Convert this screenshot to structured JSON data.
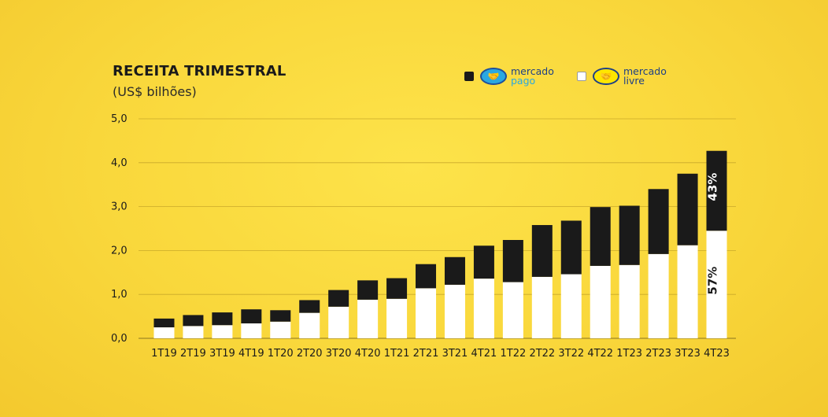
{
  "title": "RECEITA TRIMESTRAL",
  "subtitle": "(US$ bilhões)",
  "legend": [
    {
      "name": "Mercado Pago",
      "line1": "mercado",
      "line2": "pago",
      "swatch": "#1a1a1a",
      "logo_color": "#2aa8e0",
      "icon": "handshake-icon"
    },
    {
      "name": "Mercado Livre",
      "line1": "mercado",
      "line2": "livre",
      "swatch": "#ffffff",
      "logo_color": "#ffe600",
      "icon": "handshake-icon"
    }
  ],
  "colors": {
    "background": "#f9d63a",
    "pago": "#1a1a1a",
    "livre": "#ffffff",
    "grid": "#c9a92a"
  },
  "chart_data": {
    "type": "bar",
    "stacked": true,
    "title": "RECEITA TRIMESTRAL",
    "subtitle": "(US$ bilhões)",
    "categories": [
      "1T19",
      "2T19",
      "3T19",
      "4T19",
      "1T20",
      "2T20",
      "3T20",
      "4T20",
      "1T21",
      "2T21",
      "3T21",
      "4T21",
      "1T22",
      "2T22",
      "3T22",
      "4T22",
      "1T23",
      "2T23",
      "3T23",
      "4T23"
    ],
    "series": [
      {
        "name": "Mercado Livre",
        "color": "#ffffff",
        "values": [
          0.25,
          0.28,
          0.3,
          0.34,
          0.38,
          0.58,
          0.72,
          0.88,
          0.9,
          1.14,
          1.22,
          1.36,
          1.28,
          1.4,
          1.46,
          1.65,
          1.67,
          1.92,
          2.12,
          2.45
        ]
      },
      {
        "name": "Mercado Pago",
        "color": "#1a1a1a",
        "values": [
          0.2,
          0.25,
          0.29,
          0.32,
          0.26,
          0.29,
          0.38,
          0.44,
          0.47,
          0.55,
          0.63,
          0.75,
          0.96,
          1.18,
          1.22,
          1.34,
          1.35,
          1.48,
          1.63,
          1.82
        ]
      }
    ],
    "yticks": [
      "0,0",
      "1,0",
      "2,0",
      "3,0",
      "4,0",
      "5,0"
    ],
    "ylim": [
      0,
      5
    ],
    "grid": true,
    "legend_position": "top-right",
    "annotations": [
      {
        "category": "4T23",
        "series": "Mercado Livre",
        "text": "57%"
      },
      {
        "category": "4T23",
        "series": "Mercado Pago",
        "text": "43%"
      }
    ]
  }
}
